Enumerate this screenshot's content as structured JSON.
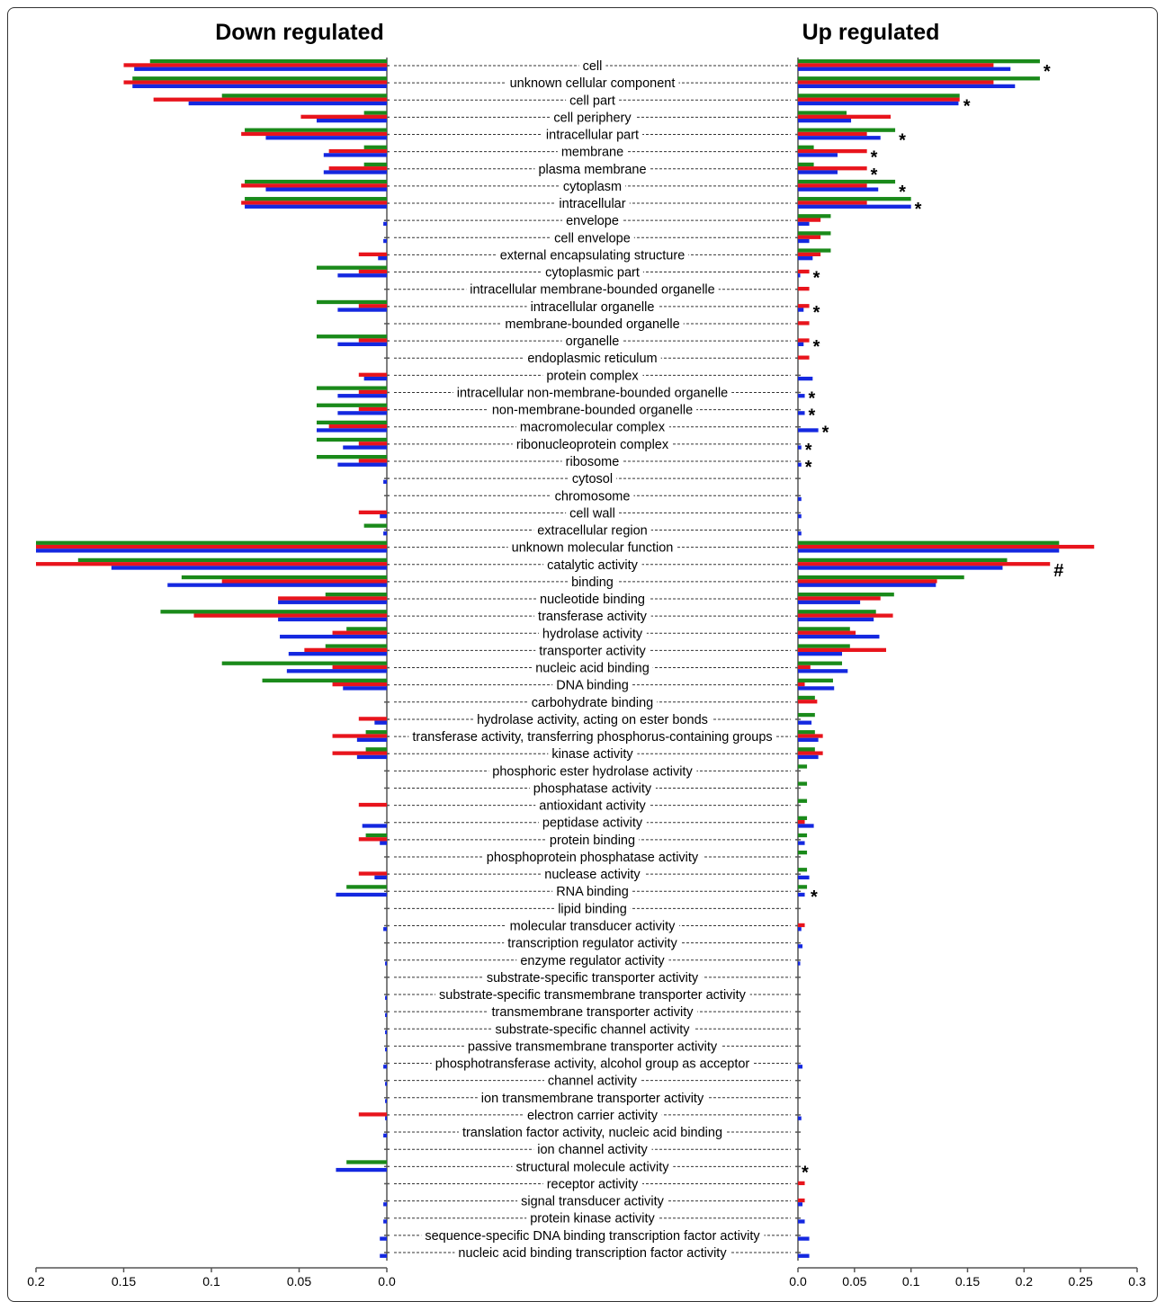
{
  "chart_data": {
    "type": "bar",
    "orientation": "horizontal",
    "panels": [
      {
        "id": "down",
        "title": "Down regulated",
        "direction": "reversed",
        "xlim": [
          0,
          0.2
        ],
        "ticks": [
          0.2,
          0.15,
          0.1,
          0.05,
          0.0
        ],
        "tick_labels": [
          "0.2",
          "0.15",
          "0.1",
          "0.05",
          "0.0"
        ]
      },
      {
        "id": "up",
        "title": "Up regulated",
        "direction": "normal",
        "xlim": [
          0,
          0.3
        ],
        "ticks": [
          0.0,
          0.05,
          0.1,
          0.15,
          0.2,
          0.25,
          0.3
        ],
        "tick_labels": [
          "0.0",
          "0.05",
          "0.1",
          "0.15",
          "0.2",
          "0.25",
          "0.3"
        ]
      }
    ],
    "series_colors": [
      "#1a8a1a",
      "#e8141c",
      "#1428e0"
    ],
    "grid": false,
    "legend": "none",
    "categories": [
      "cell",
      "unknown cellular component",
      "cell part",
      "cell periphery",
      "intracellular part",
      "membrane",
      "plasma membrane",
      "cytoplasm",
      "intracellular",
      "envelope",
      "cell envelope",
      "external encapsulating structure",
      "cytoplasmic part",
      "intracellular membrane-bounded organelle",
      "intracellular organelle",
      "membrane-bounded organelle",
      "organelle",
      "endoplasmic reticulum",
      "protein complex",
      "intracellular non-membrane-bounded organelle",
      "non-membrane-bounded organelle",
      "macromolecular complex",
      "ribonucleoprotein complex",
      "ribosome",
      "cytosol",
      "chromosome",
      "cell wall",
      "extracellular region",
      "unknown molecular function",
      "catalytic activity",
      "binding",
      "nucleotide binding",
      "transferase activity",
      "hydrolase activity",
      "transporter activity",
      "nucleic acid binding",
      "DNA binding",
      "carbohydrate binding",
      "hydrolase activity, acting on ester bonds",
      "transferase activity, transferring phosphorus-containing groups",
      "kinase activity",
      "phosphoric ester hydrolase activity",
      "phosphatase activity",
      "antioxidant activity",
      "peptidase activity",
      "protein binding",
      "phosphoprotein phosphatase activity",
      "nuclease activity",
      "RNA binding",
      "lipid binding",
      "molecular transducer activity",
      "transcription regulator activity",
      "enzyme regulator activity",
      "substrate-specific transporter activity",
      "substrate-specific transmembrane transporter activity",
      "transmembrane transporter activity",
      "substrate-specific channel activity",
      "passive transmembrane transporter activity",
      "phosphotransferase activity, alcohol group as acceptor",
      "channel activity",
      "ion transmembrane transporter activity",
      "electron carrier activity",
      "translation factor activity, nucleic acid binding",
      "ion channel activity",
      "structural molecule activity",
      "receptor activity",
      "signal transducer activity",
      "protein kinase activity",
      "sequence-specific DNA binding transcription factor activity",
      "nucleic acid binding transcription factor activity"
    ],
    "down_values": [
      [
        0.135,
        0.15,
        0.144
      ],
      [
        0.145,
        0.15,
        0.145
      ],
      [
        0.094,
        0.133,
        0.113
      ],
      [
        0.013,
        0.049,
        0.04
      ],
      [
        0.081,
        0.083,
        0.069
      ],
      [
        0.013,
        0.033,
        0.036
      ],
      [
        0.013,
        0.033,
        0.036
      ],
      [
        0.081,
        0.083,
        0.069
      ],
      [
        0.081,
        0.083,
        0.081
      ],
      [
        0,
        0,
        0.002
      ],
      [
        0,
        0,
        0.002
      ],
      [
        0,
        0.016,
        0.005
      ],
      [
        0.04,
        0.016,
        0.028
      ],
      [
        0,
        0,
        0
      ],
      [
        0.04,
        0.016,
        0.028
      ],
      [
        0,
        0,
        0
      ],
      [
        0.04,
        0.016,
        0.028
      ],
      [
        0,
        0,
        0
      ],
      [
        0,
        0.016,
        0.013
      ],
      [
        0.04,
        0.016,
        0.028
      ],
      [
        0.04,
        0.016,
        0.028
      ],
      [
        0.04,
        0.033,
        0.04
      ],
      [
        0.04,
        0.016,
        0.025
      ],
      [
        0.04,
        0.016,
        0.028
      ],
      [
        0,
        0,
        0.002
      ],
      [
        0,
        0,
        0
      ],
      [
        0,
        0.016,
        0.004
      ],
      [
        0.013,
        0,
        0.002
      ],
      [
        0.2,
        0.2,
        0.2
      ],
      [
        0.176,
        0.2,
        0.157
      ],
      [
        0.117,
        0.094,
        0.125
      ],
      [
        0.035,
        0.062,
        0.062
      ],
      [
        0.129,
        0.11,
        0.062
      ],
      [
        0.023,
        0.031,
        0.061
      ],
      [
        0.035,
        0.047,
        0.056
      ],
      [
        0.094,
        0.031,
        0.057
      ],
      [
        0.071,
        0.031,
        0.025
      ],
      [
        0,
        0,
        0
      ],
      [
        0,
        0.016,
        0.007
      ],
      [
        0.012,
        0.031,
        0.017
      ],
      [
        0.012,
        0.031,
        0.017
      ],
      [
        0,
        0,
        0
      ],
      [
        0,
        0,
        0
      ],
      [
        0,
        0.016,
        0
      ],
      [
        0,
        0,
        0.014
      ],
      [
        0.012,
        0.016,
        0.004
      ],
      [
        0,
        0,
        0
      ],
      [
        0,
        0.016,
        0.007
      ],
      [
        0.023,
        0,
        0.029
      ],
      [
        0,
        0,
        0
      ],
      [
        0,
        0,
        0.002
      ],
      [
        0,
        0,
        0
      ],
      [
        0,
        0,
        0.001
      ],
      [
        0,
        0,
        0
      ],
      [
        0,
        0,
        0.001
      ],
      [
        0,
        0,
        0.001
      ],
      [
        0,
        0,
        0.001
      ],
      [
        0,
        0,
        0.001
      ],
      [
        0,
        0,
        0.002
      ],
      [
        0,
        0,
        0.001
      ],
      [
        0,
        0,
        0.001
      ],
      [
        0,
        0.016,
        0.001
      ],
      [
        0,
        0,
        0.002
      ],
      [
        0,
        0,
        0
      ],
      [
        0.023,
        0,
        0.029
      ],
      [
        0,
        0,
        0
      ],
      [
        0,
        0,
        0.002
      ],
      [
        0,
        0,
        0.002
      ],
      [
        0,
        0,
        0.004
      ],
      [
        0,
        0,
        0.004
      ]
    ],
    "up_values": [
      [
        0.214,
        0.173,
        0.188
      ],
      [
        0.214,
        0.173,
        0.192
      ],
      [
        0.143,
        0.143,
        0.142
      ],
      [
        0.043,
        0.082,
        0.047
      ],
      [
        0.086,
        0.061,
        0.073
      ],
      [
        0.014,
        0.061,
        0.035
      ],
      [
        0.014,
        0.061,
        0.035
      ],
      [
        0.086,
        0.061,
        0.071
      ],
      [
        0.1,
        0.061,
        0.1
      ],
      [
        0.029,
        0.02,
        0.01
      ],
      [
        0.029,
        0.02,
        0.01
      ],
      [
        0.029,
        0.02,
        0.013
      ],
      [
        0,
        0.01,
        0.002
      ],
      [
        0,
        0.01,
        0
      ],
      [
        0,
        0.01,
        0.005
      ],
      [
        0,
        0.01,
        0
      ],
      [
        0,
        0.01,
        0.005
      ],
      [
        0,
        0.01,
        0
      ],
      [
        0,
        0,
        0.013
      ],
      [
        0,
        0,
        0.006
      ],
      [
        0,
        0,
        0.006
      ],
      [
        0,
        0,
        0.018
      ],
      [
        0,
        0,
        0.003
      ],
      [
        0,
        0,
        0.003
      ],
      [
        0,
        0,
        0
      ],
      [
        0,
        0,
        0.003
      ],
      [
        0,
        0,
        0.003
      ],
      [
        0,
        0,
        0.003
      ],
      [
        0.231,
        0.262,
        0.231
      ],
      [
        0.185,
        0.223,
        0.181
      ],
      [
        0.147,
        0.123,
        0.122
      ],
      [
        0.085,
        0.073,
        0.055
      ],
      [
        0.069,
        0.084,
        0.067
      ],
      [
        0.046,
        0.051,
        0.072
      ],
      [
        0.046,
        0.078,
        0.039
      ],
      [
        0.039,
        0.011,
        0.044
      ],
      [
        0.031,
        0.006,
        0.032
      ],
      [
        0.015,
        0.017,
        0
      ],
      [
        0.015,
        0,
        0.012
      ],
      [
        0.015,
        0.022,
        0.018
      ],
      [
        0.015,
        0.022,
        0.018
      ],
      [
        0.008,
        0,
        0
      ],
      [
        0.008,
        0,
        0
      ],
      [
        0.008,
        0,
        0
      ],
      [
        0.008,
        0.006,
        0.014
      ],
      [
        0.008,
        0,
        0.006
      ],
      [
        0.008,
        0,
        0
      ],
      [
        0.008,
        0,
        0.01
      ],
      [
        0.008,
        0,
        0.006
      ],
      [
        0,
        0,
        0
      ],
      [
        0,
        0.006,
        0.003
      ],
      [
        0,
        0,
        0.004
      ],
      [
        0,
        0,
        0.002
      ],
      [
        0,
        0,
        0
      ],
      [
        0,
        0,
        0
      ],
      [
        0,
        0,
        0
      ],
      [
        0,
        0,
        0
      ],
      [
        0,
        0,
        0
      ],
      [
        0,
        0,
        0.004
      ],
      [
        0,
        0,
        0
      ],
      [
        0,
        0,
        0
      ],
      [
        0,
        0,
        0.003
      ],
      [
        0,
        0,
        0
      ],
      [
        0,
        0,
        0
      ],
      [
        0,
        0,
        0
      ],
      [
        0,
        0.006,
        0
      ],
      [
        0,
        0.006,
        0.004
      ],
      [
        0,
        0,
        0.006
      ],
      [
        0,
        0,
        0.01
      ],
      [
        0,
        0,
        0.01
      ]
    ],
    "up_marks": [
      {
        "category": 0,
        "mark": "*"
      },
      {
        "category": 2,
        "mark": "*"
      },
      {
        "category": 4,
        "mark": "*"
      },
      {
        "category": 5,
        "mark": "*"
      },
      {
        "category": 6,
        "mark": "*"
      },
      {
        "category": 7,
        "mark": "*"
      },
      {
        "category": 8,
        "mark": "*"
      },
      {
        "category": 12,
        "mark": "*"
      },
      {
        "category": 14,
        "mark": "*"
      },
      {
        "category": 16,
        "mark": "*"
      },
      {
        "category": 19,
        "mark": "*"
      },
      {
        "category": 20,
        "mark": "*"
      },
      {
        "category": 21,
        "mark": "*"
      },
      {
        "category": 22,
        "mark": "*"
      },
      {
        "category": 23,
        "mark": "*"
      },
      {
        "category": 29,
        "mark": "#"
      },
      {
        "category": 48,
        "mark": "*"
      },
      {
        "category": 64,
        "mark": "*"
      }
    ]
  }
}
